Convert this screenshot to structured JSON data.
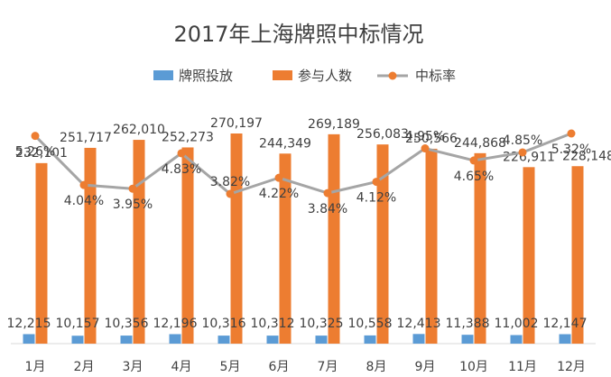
{
  "chart_data": {
    "type": "bar",
    "title": "2017年上海牌照中标情况",
    "categories": [
      "1月",
      "2月",
      "3月",
      "4月",
      "5月",
      "6月",
      "7月",
      "8月",
      "9月",
      "10月",
      "11月",
      "12月"
    ],
    "series": [
      {
        "name": "牌照投放",
        "kind": "bar",
        "color": "#5b9bd5",
        "values": [
          12215,
          10157,
          10356,
          12196,
          10316,
          10312,
          10325,
          10558,
          12413,
          11388,
          11002,
          12147
        ],
        "labels": [
          "12,215",
          "10,157",
          "10,356",
          "12,196",
          "10,316",
          "10,312",
          "10,325",
          "10,558",
          "12,413",
          "11,388",
          "11,002",
          "12,147"
        ]
      },
      {
        "name": "参与人数",
        "kind": "bar",
        "color": "#ed7d31",
        "values": [
          232101,
          251717,
          262010,
          252273,
          270197,
          244349,
          269189,
          256083,
          250566,
          244868,
          226911,
          228148
        ],
        "labels": [
          "232,101",
          "251,717",
          "262,010",
          "252,273",
          "270,197",
          "244,349",
          "269,189",
          "256,083",
          "250,566",
          "244,868",
          "226,911",
          "228,148"
        ]
      },
      {
        "name": "中标率",
        "kind": "line",
        "color": "#a5a5a5",
        "marker_color": "#ed7d31",
        "values": [
          5.26,
          4.04,
          3.95,
          4.83,
          3.82,
          4.22,
          3.84,
          4.12,
          4.95,
          4.65,
          4.85,
          5.32
        ],
        "labels": [
          "5.26%",
          "4.04%",
          "3.95%",
          "4.83%",
          "3.82%",
          "4.22%",
          "3.84%",
          "4.12%",
          "4.95%",
          "4.65%",
          "4.85%",
          "5.32%"
        ]
      }
    ],
    "xlabel": "",
    "ylabel": "",
    "legend_position": "top",
    "grid": false
  }
}
